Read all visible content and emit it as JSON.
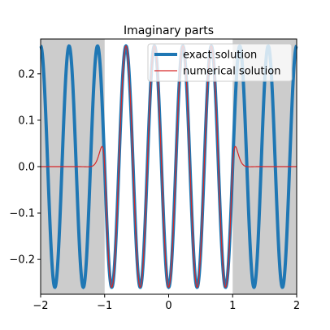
{
  "chart_data": {
    "type": "line",
    "title": "Imaginary parts",
    "xlim": [
      -2,
      2
    ],
    "ylim": [
      -0.275,
      0.275
    ],
    "xticks": [
      -2,
      -1,
      0,
      1,
      2
    ],
    "xtick_labels": [
      "−2",
      "−1",
      "0",
      "1",
      "2"
    ],
    "yticks": [
      -0.2,
      -0.1,
      0.0,
      0.1,
      0.2
    ],
    "ytick_labels": [
      "−0.2",
      "−0.1",
      "0.0",
      "0.1",
      "0.2"
    ],
    "shaded_regions": [
      {
        "from": -2,
        "to": -1,
        "color": "#cccccc"
      },
      {
        "from": 1,
        "to": 2,
        "color": "#cccccc"
      }
    ],
    "series": [
      {
        "name": "exact solution",
        "color": "#1f77b4",
        "style": "thick",
        "function": "0.26 * cos(4.5*pi*x + pi)",
        "amplitude": 0.26,
        "x_range": [
          -2,
          2
        ]
      },
      {
        "name": "numerical solution",
        "color": "#d62728",
        "style": "thin",
        "function": "matches exact solution on [-1, 1]; decays to 0 outside",
        "amplitude": 0.26,
        "x_range": [
          -2,
          2
        ]
      }
    ],
    "legend": {
      "placement": "top-right"
    },
    "grid": false
  }
}
